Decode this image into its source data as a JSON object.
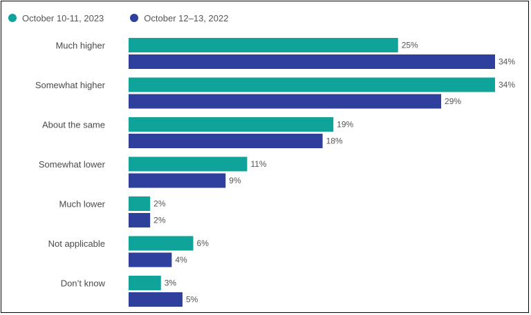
{
  "chart_data": {
    "type": "bar",
    "orientation": "horizontal",
    "categories": [
      "Much higher",
      "Somewhat higher",
      "About the same",
      "Somewhat lower",
      "Much lower",
      "Not applicable",
      "Don’t know"
    ],
    "series": [
      {
        "name": "October 10-11, 2023",
        "color": "#0fa39a",
        "values": [
          25,
          34,
          19,
          11,
          2,
          6,
          3
        ]
      },
      {
        "name": "October 12–13, 2022",
        "color": "#2e3f9c",
        "values": [
          34,
          29,
          18,
          9,
          2,
          4,
          5
        ]
      }
    ],
    "value_suffix": "%",
    "xlim": [
      0,
      34
    ],
    "legend_position": "top-left",
    "grid": false,
    "title": "",
    "xlabel": "",
    "ylabel": ""
  }
}
